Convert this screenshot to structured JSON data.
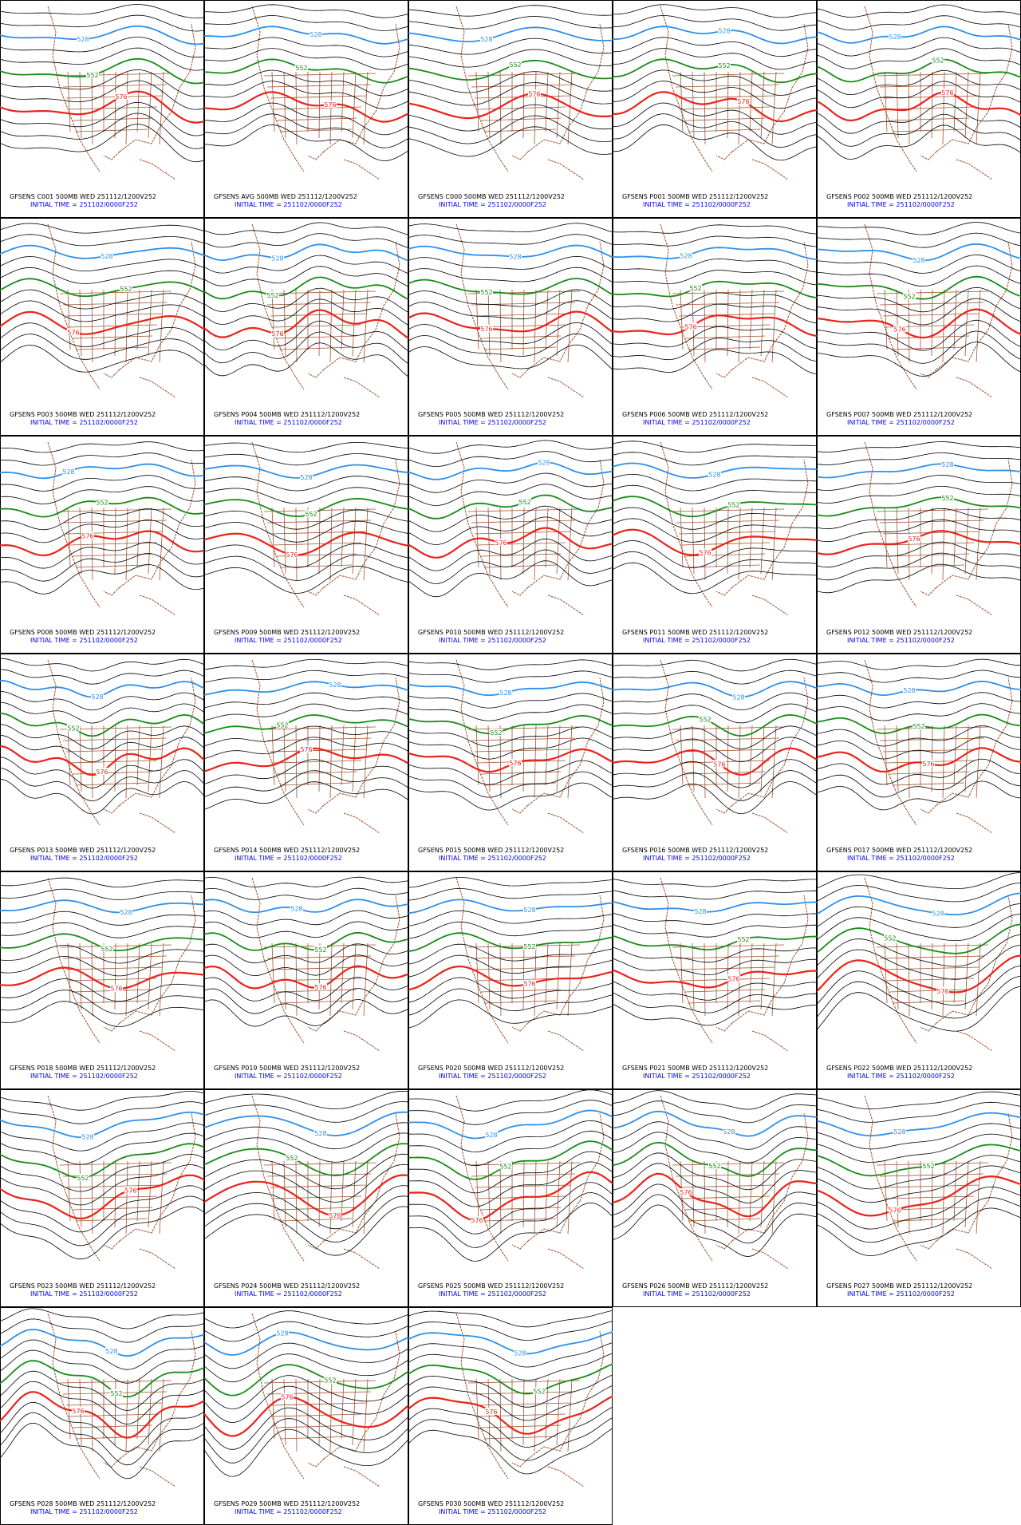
{
  "panels": [
    {
      "title": "GFSENS C001 500MB WED 251112/1200V252",
      "init": "INITIAL TIME = 251102/0000F252"
    },
    {
      "title": "GFSENS AVG 500MB WED 251112/1200V252",
      "init": "INITIAL TIME = 251102/0000F252"
    },
    {
      "title": "GFSENS C000 500MB WED 251112/1200V252",
      "init": "INITIAL TIME = 251102/0000F252"
    },
    {
      "title": "GFSENS P001 500MB WED 251112/1200V252",
      "init": "INITIAL TIME = 251102/0000F252"
    },
    {
      "title": "GFSENS P002 500MB WED 251112/1200V252",
      "init": "INITIAL TIME = 251102/0000F252"
    },
    {
      "title": "GFSENS P003 500MB WED 251112/1200V252",
      "init": "INITIAL TIME = 251102/0000F252"
    },
    {
      "title": "GFSENS P004 500MB WED 251112/1200V252",
      "init": "INITIAL TIME = 251102/0000F252"
    },
    {
      "title": "GFSENS P005 500MB WED 251112/1200V252",
      "init": "INITIAL TIME = 251102/0000F252"
    },
    {
      "title": "GFSENS P006 500MB WED 251112/1200V252",
      "init": "INITIAL TIME = 251102/0000F252"
    },
    {
      "title": "GFSENS P007 500MB WED 251112/1200V252",
      "init": "INITIAL TIME = 251102/0000F252"
    },
    {
      "title": "GFSENS P008 500MB WED 251112/1200V252",
      "init": "INITIAL TIME = 251102/0000F252"
    },
    {
      "title": "GFSENS P009 500MB WED 251112/1200V252",
      "init": "INITIAL TIME = 251102/0000F252"
    },
    {
      "title": "GFSENS P010 500MB WED 251112/1200V252",
      "init": "INITIAL TIME = 251102/0000F252"
    },
    {
      "title": "GFSENS P011 500MB WED 251112/1200V252",
      "init": "INITIAL TIME = 251102/0000F252"
    },
    {
      "title": "GFSENS P012 500MB WED 251112/1200V252",
      "init": "INITIAL TIME = 251102/0000F252"
    },
    {
      "title": "GFSENS P013 500MB WED 251112/1200V252",
      "init": "INITIAL TIME = 251102/0000F252"
    },
    {
      "title": "GFSENS P014 500MB WED 251112/1200V252",
      "init": "INITIAL TIME = 251102/0000F252"
    },
    {
      "title": "GFSENS P015 500MB WED 251112/1200V252",
      "init": "INITIAL TIME = 251102/0000F252"
    },
    {
      "title": "GFSENS P016 500MB WED 251112/1200V252",
      "init": "INITIAL TIME = 251102/0000F252"
    },
    {
      "title": "GFSENS P017 500MB WED 251112/1200V252",
      "init": "INITIAL TIME = 251102/0000F252"
    },
    {
      "title": "GFSENS P018 500MB WED 251112/1200V252",
      "init": "INITIAL TIME = 251102/0000F252"
    },
    {
      "title": "GFSENS P019 500MB WED 251112/1200V252",
      "init": "INITIAL TIME = 251102/0000F252"
    },
    {
      "title": "GFSENS P020 500MB WED 251112/1200V252",
      "init": "INITIAL TIME = 251102/0000F252"
    },
    {
      "title": "GFSENS P021 500MB WED 251112/1200V252",
      "init": "INITIAL TIME = 251102/0000F252"
    },
    {
      "title": "GFSENS P022 500MB WED 251112/1200V252",
      "init": "INITIAL TIME = 251102/0000F252"
    },
    {
      "title": "GFSENS P023 500MB WED 251112/1200V252",
      "init": "INITIAL TIME = 251102/0000F252"
    },
    {
      "title": "GFSENS P024 500MB WED 251112/1200V252",
      "init": "INITIAL TIME = 251102/0000F252"
    },
    {
      "title": "GFSENS P025 500MB WED 251112/1200V252",
      "init": "INITIAL TIME = 251102/0000F252"
    },
    {
      "title": "GFSENS P026 500MB WED 251112/1200V252",
      "init": "INITIAL TIME = 251102/0000F252"
    },
    {
      "title": "GFSENS P027 500MB WED 251112/1200V252",
      "init": "INITIAL TIME = 251102/0000F252"
    },
    {
      "title": "GFSENS P028 500MB WED 251112/1200V252",
      "init": "INITIAL TIME = 251102/0000F252"
    },
    {
      "title": "GFSENS P029 500MB WED 251112/1200V252",
      "init": "INITIAL TIME = 251102/0000F252"
    },
    {
      "title": "GFSENS P030 500MB WED 251112/1200V252",
      "init": "INITIAL TIME = 251102/0000F252"
    }
  ],
  "contour_labels": [
    {
      "label": "528",
      "color": "#2f8fe8"
    },
    {
      "label": "552",
      "color": "#1a8a1a"
    },
    {
      "label": "576",
      "color": "#e8231a"
    }
  ]
}
